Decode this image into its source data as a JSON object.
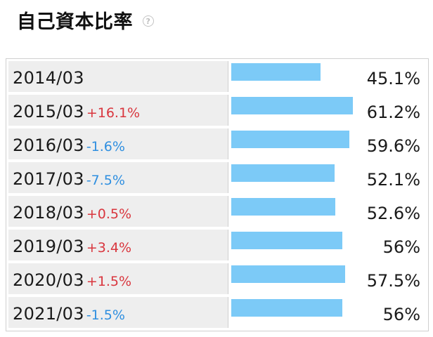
{
  "header": {
    "title": "自己資本比率",
    "help_icon_glyph": "?"
  },
  "colors": {
    "bar": "#7ccaf7",
    "increase": "#d9363e",
    "decrease": "#2f8fe0"
  },
  "chart_data": {
    "type": "bar",
    "title": "自己資本比率",
    "orientation": "horizontal",
    "categories": [
      "2014/03",
      "2015/03",
      "2016/03",
      "2017/03",
      "2018/03",
      "2019/03",
      "2020/03",
      "2021/03"
    ],
    "values": [
      45.1,
      61.2,
      59.6,
      52.1,
      52.6,
      56,
      57.5,
      56
    ],
    "value_labels": [
      "45.1%",
      "61.2%",
      "59.6%",
      "52.1%",
      "52.6%",
      "56%",
      "57.5%",
      "56%"
    ],
    "changes": [
      "",
      "+16.1%",
      "-1.6%",
      "-7.5%",
      "+0.5%",
      "+3.4%",
      "+1.5%",
      "-1.5%"
    ],
    "xlim": [
      0,
      100
    ],
    "grid": false,
    "legend": "none"
  }
}
